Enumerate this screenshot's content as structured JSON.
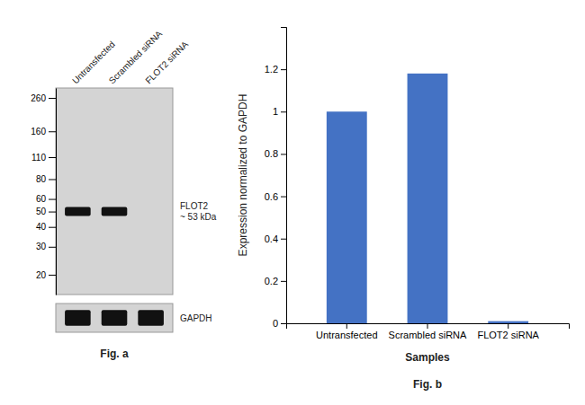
{
  "chart_data": [
    {
      "type": "blot",
      "categories": [
        "Untransfected",
        "Scrambled siRNA",
        "FLOT2 siRNA"
      ],
      "log": "y",
      "ylim": [
        15,
        300
      ],
      "yticks": [
        260,
        160,
        110,
        80,
        60,
        50,
        40,
        30,
        20
      ],
      "series": [
        {
          "name": "FLOT2\n~ 53 kDa",
          "type": "band",
          "color": "#111111",
          "values": [
            50,
            50,
            null
          ]
        },
        {
          "name": "GAPDH",
          "type": "strip",
          "color": "#111111"
        }
      ],
      "annotations": [
        "Fig. a"
      ]
    },
    {
      "type": "bar",
      "categories": [
        "Untransfected",
        "Scrambled siRNA",
        "FLOT2 siRNA"
      ],
      "values": [
        1.0,
        1.18,
        0.01
      ],
      "color": "#4472c4",
      "ylabel": "Expression normalized to GAPDH",
      "xlabel": "Samples",
      "ylim": [
        0,
        1.4
      ],
      "yticks": [
        0,
        0.2,
        0.4,
        0.6,
        0.8,
        1,
        1.2
      ],
      "grid": false,
      "annotations": [
        "Fig. b"
      ]
    }
  ]
}
